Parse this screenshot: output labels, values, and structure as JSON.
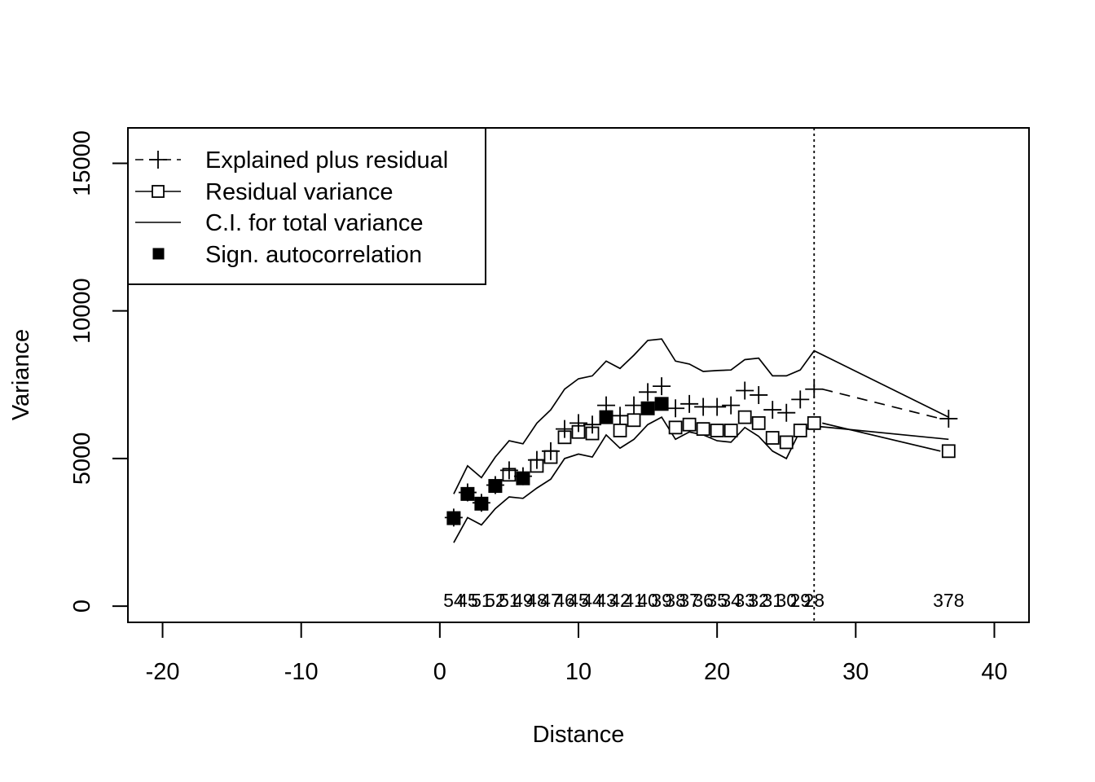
{
  "chart_data": {
    "type": "scatter",
    "xlabel": "Distance",
    "ylabel": "Variance",
    "xlim": [
      -22.5,
      42.5
    ],
    "ylim": [
      -550,
      16200
    ],
    "x_ticks": [
      -20,
      -10,
      0,
      10,
      20,
      30,
      40
    ],
    "y_ticks": [
      0,
      5000,
      10000,
      15000
    ],
    "legend_position": "top-left",
    "legend": [
      {
        "label": "Explained plus residual",
        "symbol": "plus",
        "line": "dashed"
      },
      {
        "label": "Residual variance",
        "symbol": "open-square",
        "line": "solid"
      },
      {
        "label": "C.I. for total variance",
        "symbol": "none",
        "line": "solid"
      },
      {
        "label": "Sign. autocorrelation",
        "symbol": "filled-square",
        "line": "none"
      }
    ],
    "vertical_line_x": 27,
    "x": [
      1,
      2,
      3,
      4,
      5,
      6,
      7,
      8,
      9,
      10,
      11,
      12,
      13,
      14,
      15,
      16,
      17,
      18,
      19,
      20,
      21,
      22,
      23,
      24,
      25,
      26,
      27,
      36.7
    ],
    "series": [
      {
        "name": "Explained plus residual",
        "values": [
          3000,
          3850,
          3500,
          4100,
          4600,
          4400,
          4950,
          5250,
          6000,
          6200,
          6150,
          6800,
          6450,
          6800,
          7250,
          7450,
          6700,
          6850,
          6750,
          6750,
          6800,
          7300,
          7150,
          6650,
          6550,
          7000,
          7350,
          6350
        ]
      },
      {
        "name": "Residual variance",
        "values": [
          2980,
          3800,
          3470,
          4070,
          4450,
          4330,
          4750,
          5050,
          5720,
          5900,
          5850,
          6400,
          5950,
          6300,
          6700,
          6850,
          6050,
          6150,
          6000,
          5950,
          5950,
          6400,
          6200,
          5700,
          5550,
          5950,
          6200,
          5250
        ]
      },
      {
        "name": "C.I. upper",
        "values": [
          3800,
          4750,
          4350,
          5050,
          5600,
          5500,
          6200,
          6650,
          7350,
          7700,
          7800,
          8300,
          8050,
          8500,
          9000,
          9050,
          8300,
          8200,
          7950,
          7980,
          8000,
          8350,
          8400,
          7800,
          7800,
          8000,
          8650,
          6400
        ]
      },
      {
        "name": "C.I. lower",
        "values": [
          2150,
          3000,
          2750,
          3300,
          3700,
          3650,
          4000,
          4300,
          5000,
          5150,
          5050,
          5800,
          5350,
          5650,
          6150,
          6400,
          5650,
          5900,
          5800,
          5600,
          5550,
          6050,
          5750,
          5250,
          5000,
          5950,
          6100,
          5650
        ]
      }
    ],
    "significant_x": [
      1,
      2,
      3,
      4,
      6,
      12,
      15,
      16
    ],
    "count_labels": [
      {
        "x": 1,
        "text": "54"
      },
      {
        "x": 2,
        "text": "45"
      },
      {
        "x": 3,
        "text": "51"
      },
      {
        "x": 4,
        "text": "52"
      },
      {
        "x": 5,
        "text": "51"
      },
      {
        "x": 6,
        "text": "49"
      },
      {
        "x": 7,
        "text": "48"
      },
      {
        "x": 8,
        "text": "47"
      },
      {
        "x": 9,
        "text": "46"
      },
      {
        "x": 10,
        "text": "45"
      },
      {
        "x": 11,
        "text": "44"
      },
      {
        "x": 12,
        "text": "43"
      },
      {
        "x": 13,
        "text": "42"
      },
      {
        "x": 14,
        "text": "41"
      },
      {
        "x": 15,
        "text": "40"
      },
      {
        "x": 16,
        "text": "39"
      },
      {
        "x": 17,
        "text": "38"
      },
      {
        "x": 18,
        "text": "37"
      },
      {
        "x": 19,
        "text": "36"
      },
      {
        "x": 20,
        "text": "35"
      },
      {
        "x": 21,
        "text": "34"
      },
      {
        "x": 22,
        "text": "33"
      },
      {
        "x": 23,
        "text": "32"
      },
      {
        "x": 24,
        "text": "31"
      },
      {
        "x": 25,
        "text": "30"
      },
      {
        "x": 26,
        "text": "29"
      },
      {
        "x": 27,
        "text": "28"
      },
      {
        "x": 36.7,
        "text": "378"
      }
    ],
    "colors": {
      "foreground": "#000000",
      "background": "#ffffff"
    }
  }
}
